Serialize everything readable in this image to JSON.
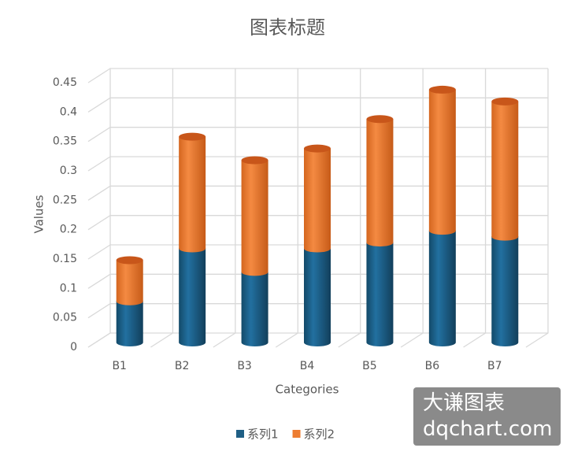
{
  "chart_data": {
    "type": "bar3d_cylinder_stacked",
    "title": "图表标题",
    "x_label": "Categories",
    "y_label": "Values",
    "categories": [
      "B1",
      "B2",
      "B3",
      "B4",
      "B5",
      "B6",
      "B7"
    ],
    "series": [
      {
        "name": "系列1",
        "color": "#1f5f85",
        "values": [
          0.07,
          0.16,
          0.12,
          0.16,
          0.17,
          0.19,
          0.18
        ]
      },
      {
        "name": "系列2",
        "color": "#ed7d31",
        "values": [
          0.07,
          0.19,
          0.19,
          0.17,
          0.21,
          0.24,
          0.23
        ]
      }
    ],
    "ylim": [
      0,
      0.45
    ],
    "yticks": [
      0,
      0.05,
      0.1,
      0.15,
      0.2,
      0.25,
      0.3,
      0.35,
      0.4,
      0.45
    ],
    "grid": true,
    "legend": "bottom"
  },
  "watermark": {
    "line1": "大谦图表",
    "line2": "dqchart.com"
  }
}
